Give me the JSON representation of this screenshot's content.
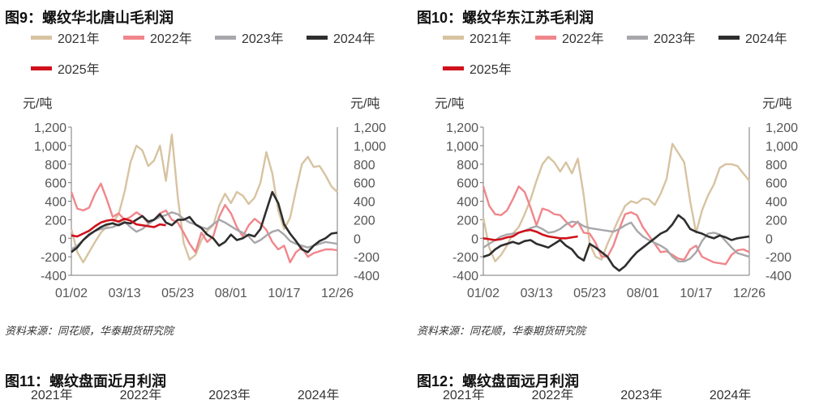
{
  "colors": {
    "2021": "#d7c3a1",
    "2022": "#f0868b",
    "2023": "#a7a7ab",
    "2024": "#2e2e2e",
    "2025": "#d0111b",
    "axis": "#7a7a7a",
    "grid": "#ffffff"
  },
  "panels": [
    {
      "title": "图9：螺纹华北唐山毛利润",
      "unit_left": "元/吨",
      "unit_right": "元/吨",
      "source": "资料来源：同花顺，华泰期货研究院"
    },
    {
      "title": "图10：螺纹华东江苏毛利润",
      "unit_left": "元/吨",
      "unit_right": "元/吨",
      "source": "资料来源：同花顺，华泰期货研究院"
    }
  ],
  "bottom_titles": [
    "图11：螺纹盘面近月利润",
    "图12：螺纹盘面远月利润"
  ],
  "bottom_legend": [
    "2021年",
    "2022年",
    "2023年",
    "2024年"
  ],
  "chart_data": [
    {
      "type": "line",
      "title": "图9：螺纹华北唐山毛利润",
      "ylabel": "元/吨",
      "ylabel_right": "元/吨",
      "x_ticks": [
        "01/02",
        "03/13",
        "05/23",
        "08/01",
        "10/17",
        "12/26"
      ],
      "y_ticks": [
        "1,200",
        "1,000",
        "800",
        "600",
        "400",
        "200",
        "0",
        "-200",
        "-400"
      ],
      "ylim": [
        -400,
        1200
      ],
      "xlim": [
        0,
        360
      ],
      "grid": false,
      "legend": "top",
      "series": [
        {
          "name": "2021年",
          "x": [
            0,
            8,
            16,
            24,
            32,
            40,
            48,
            56,
            64,
            72,
            80,
            88,
            96,
            104,
            112,
            120,
            128,
            136,
            144,
            152,
            160,
            168,
            176,
            184,
            192,
            200,
            208,
            216,
            224,
            232,
            240,
            248,
            256,
            264,
            272,
            280,
            288,
            296,
            304,
            312,
            320,
            328,
            336,
            344,
            352,
            360
          ],
          "y": [
            100,
            -150,
            -260,
            -150,
            -40,
            60,
            130,
            170,
            260,
            500,
            820,
            1000,
            950,
            780,
            840,
            1000,
            620,
            1120,
            450,
            -50,
            -230,
            -180,
            -20,
            80,
            140,
            350,
            480,
            380,
            500,
            460,
            370,
            440,
            600,
            930,
            700,
            300,
            100,
            220,
            520,
            800,
            880,
            770,
            780,
            680,
            560,
            500
          ]
        },
        {
          "name": "2022年",
          "x": [
            0,
            8,
            16,
            24,
            32,
            40,
            48,
            56,
            64,
            72,
            80,
            88,
            96,
            104,
            112,
            120,
            128,
            136,
            144,
            152,
            160,
            168,
            176,
            184,
            192,
            200,
            208,
            216,
            224,
            232,
            240,
            248,
            256,
            264,
            272,
            280,
            288,
            296,
            304,
            312,
            320,
            328,
            336,
            344,
            352,
            360
          ],
          "y": [
            500,
            320,
            300,
            330,
            480,
            590,
            420,
            230,
            270,
            200,
            230,
            280,
            240,
            160,
            200,
            270,
            300,
            200,
            170,
            60,
            -60,
            -150,
            60,
            -40,
            20,
            230,
            360,
            270,
            120,
            20,
            140,
            210,
            160,
            90,
            -40,
            -120,
            -80,
            -260,
            -150,
            -100,
            -200,
            -160,
            -140,
            -120,
            -120,
            -130
          ]
        },
        {
          "name": "2023年",
          "x": [
            0,
            8,
            16,
            24,
            32,
            40,
            48,
            56,
            64,
            72,
            80,
            88,
            96,
            104,
            112,
            120,
            128,
            136,
            144,
            152,
            160,
            168,
            176,
            184,
            192,
            200,
            208,
            216,
            224,
            232,
            240,
            248,
            256,
            264,
            272,
            280,
            288,
            296,
            304,
            312,
            320,
            328,
            336,
            344,
            352,
            360
          ],
          "y": [
            -120,
            -80,
            -20,
            30,
            80,
            100,
            110,
            120,
            150,
            180,
            120,
            70,
            100,
            150,
            200,
            230,
            250,
            280,
            260,
            210,
            170,
            150,
            120,
            100,
            150,
            200,
            170,
            130,
            90,
            60,
            20,
            -50,
            -20,
            30,
            70,
            90,
            40,
            -30,
            -60,
            -80,
            -100,
            -80,
            -60,
            -40,
            -50,
            -60
          ]
        },
        {
          "name": "2024年",
          "x": [
            0,
            8,
            16,
            24,
            32,
            40,
            48,
            56,
            64,
            72,
            80,
            88,
            96,
            104,
            112,
            120,
            128,
            136,
            144,
            152,
            160,
            168,
            176,
            184,
            192,
            200,
            208,
            216,
            224,
            232,
            240,
            248,
            256,
            264,
            272,
            280,
            288,
            296,
            304,
            312,
            320,
            328,
            336,
            344,
            352,
            360
          ],
          "y": [
            -150,
            -100,
            -20,
            40,
            80,
            120,
            150,
            160,
            140,
            170,
            160,
            200,
            240,
            180,
            200,
            260,
            170,
            140,
            200,
            200,
            230,
            150,
            110,
            40,
            0,
            -80,
            -40,
            40,
            -20,
            0,
            40,
            20,
            100,
            300,
            500,
            380,
            150,
            50,
            -30,
            -120,
            -150,
            -80,
            -30,
            0,
            50,
            60
          ]
        },
        {
          "name": "2025年",
          "x": [
            0,
            8,
            16,
            24,
            32,
            40,
            48,
            56,
            64,
            72,
            80,
            88,
            96,
            104,
            112,
            120,
            128
          ],
          "y": [
            30,
            20,
            50,
            80,
            130,
            170,
            190,
            200,
            180,
            210,
            190,
            150,
            140,
            130,
            120,
            150,
            140
          ]
        }
      ]
    },
    {
      "type": "line",
      "title": "图10：螺纹华东江苏毛利润",
      "ylabel": "元/吨",
      "ylabel_right": "元/吨",
      "x_ticks": [
        "01/02",
        "03/13",
        "05/23",
        "08/01",
        "10/17",
        "12/26"
      ],
      "y_ticks": [
        "1,200",
        "1,000",
        "800",
        "600",
        "400",
        "200",
        "0",
        "-200",
        "-400"
      ],
      "ylim": [
        -400,
        1200
      ],
      "xlim": [
        0,
        360
      ],
      "grid": false,
      "legend": "top",
      "series": [
        {
          "name": "2021年",
          "x": [
            0,
            8,
            16,
            24,
            32,
            40,
            48,
            56,
            64,
            72,
            80,
            88,
            96,
            104,
            112,
            120,
            128,
            136,
            144,
            152,
            160,
            168,
            176,
            184,
            192,
            200,
            208,
            216,
            224,
            232,
            240,
            248,
            256,
            264,
            272,
            280,
            288,
            296,
            304,
            312,
            320,
            328,
            336,
            344,
            352,
            360
          ],
          "y": [
            220,
            -100,
            -250,
            -180,
            -80,
            50,
            120,
            260,
            420,
            620,
            800,
            880,
            820,
            720,
            820,
            700,
            860,
            460,
            -60,
            -200,
            -230,
            -60,
            80,
            220,
            350,
            400,
            380,
            430,
            420,
            360,
            480,
            640,
            1020,
            920,
            820,
            400,
            60,
            300,
            460,
            580,
            760,
            800,
            800,
            780,
            700,
            620
          ]
        },
        {
          "name": "2022年",
          "x": [
            0,
            8,
            16,
            24,
            32,
            40,
            48,
            56,
            64,
            72,
            80,
            88,
            96,
            104,
            112,
            120,
            128,
            136,
            144,
            152,
            160,
            168,
            176,
            184,
            192,
            200,
            208,
            216,
            224,
            232,
            240,
            248,
            256,
            264,
            272,
            280,
            288,
            296,
            304,
            312,
            320,
            328,
            336,
            344,
            352,
            360
          ],
          "y": [
            560,
            350,
            260,
            250,
            300,
            420,
            560,
            500,
            330,
            140,
            320,
            300,
            260,
            250,
            180,
            120,
            180,
            60,
            50,
            -50,
            -200,
            -200,
            -80,
            100,
            260,
            280,
            250,
            120,
            30,
            -60,
            -150,
            -140,
            -180,
            -220,
            -230,
            -120,
            -80,
            -200,
            -230,
            -260,
            -270,
            -280,
            -180,
            -130,
            -120,
            -150
          ]
        },
        {
          "name": "2023年",
          "x": [
            0,
            8,
            16,
            24,
            32,
            40,
            48,
            56,
            64,
            72,
            80,
            88,
            96,
            104,
            112,
            120,
            128,
            136,
            144,
            152,
            160,
            168,
            176,
            184,
            192,
            200,
            208,
            216,
            224,
            232,
            240,
            248,
            256,
            264,
            272,
            280,
            288,
            296,
            304,
            312,
            320,
            328,
            336,
            344,
            352,
            360
          ],
          "y": [
            -100,
            -60,
            -20,
            20,
            40,
            50,
            60,
            80,
            110,
            130,
            100,
            60,
            70,
            100,
            150,
            180,
            170,
            130,
            110,
            100,
            90,
            80,
            70,
            100,
            140,
            170,
            80,
            20,
            -20,
            -50,
            -80,
            -120,
            -200,
            -250,
            -250,
            -220,
            -150,
            -30,
            50,
            60,
            40,
            -30,
            -100,
            -160,
            -180,
            -200
          ]
        },
        {
          "name": "2024年",
          "x": [
            0,
            8,
            16,
            24,
            32,
            40,
            48,
            56,
            64,
            72,
            80,
            88,
            96,
            104,
            112,
            120,
            128,
            136,
            144,
            152,
            160,
            168,
            176,
            184,
            192,
            200,
            208,
            216,
            224,
            232,
            240,
            248,
            256,
            264,
            272,
            280,
            288,
            296,
            304,
            312,
            320,
            328,
            336,
            344,
            352,
            360
          ],
          "y": [
            -200,
            -180,
            -120,
            -80,
            -60,
            -40,
            -60,
            -30,
            -20,
            -60,
            -80,
            -100,
            -60,
            -20,
            -80,
            -120,
            -200,
            -240,
            -60,
            -100,
            -150,
            -200,
            -300,
            -350,
            -300,
            -220,
            -150,
            -100,
            -50,
            0,
            50,
            80,
            150,
            250,
            200,
            100,
            70,
            50,
            20,
            0,
            30,
            10,
            -20,
            0,
            10,
            20
          ]
        },
        {
          "name": "2025年",
          "x": [
            0,
            8,
            16,
            24,
            32,
            40,
            48,
            56,
            64,
            72,
            80,
            88,
            96,
            104,
            112,
            120,
            128
          ],
          "y": [
            0,
            -10,
            -20,
            -10,
            10,
            20,
            60,
            80,
            90,
            70,
            40,
            20,
            10,
            0,
            0,
            10,
            20
          ]
        }
      ]
    }
  ]
}
